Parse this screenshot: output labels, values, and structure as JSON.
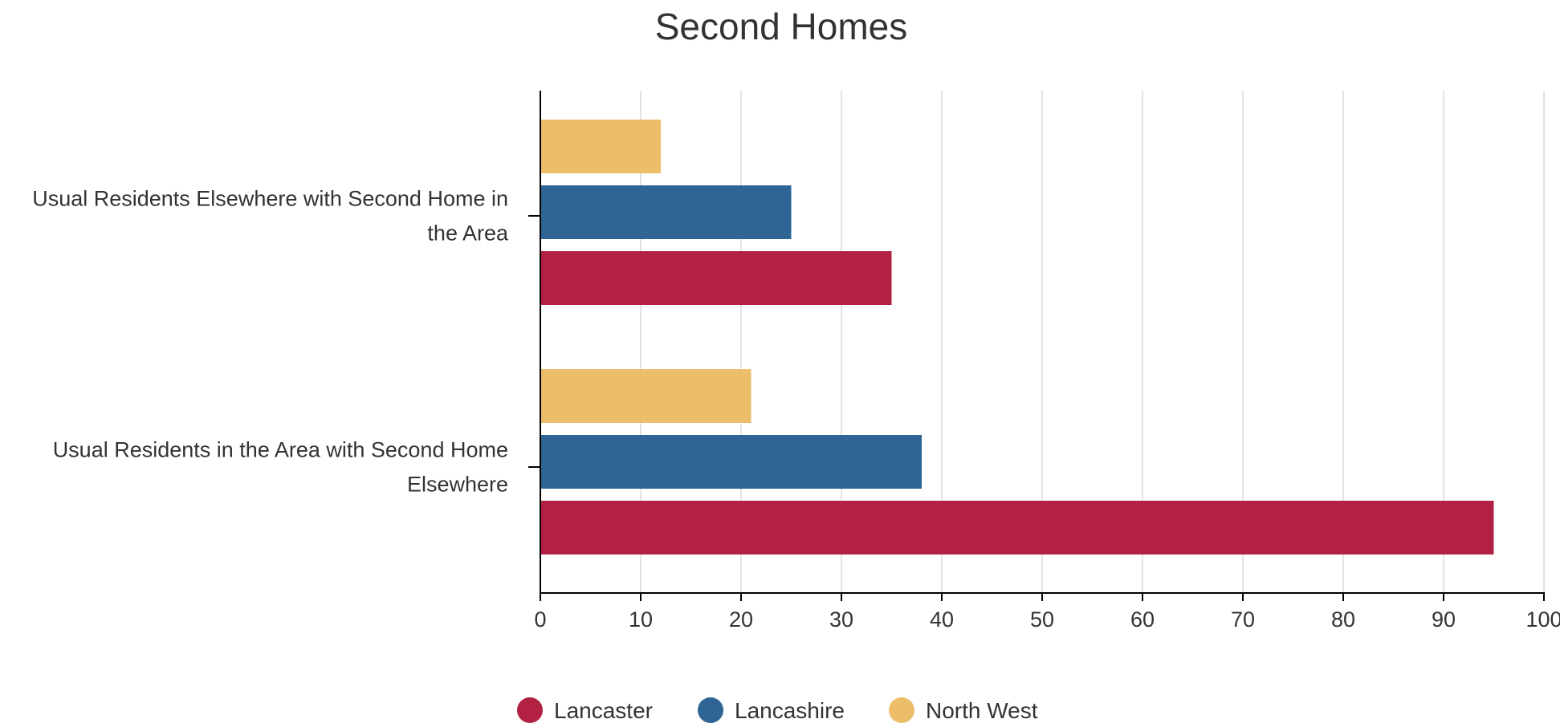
{
  "chart_data": {
    "type": "bar",
    "orientation": "horizontal",
    "title": "Second Homes",
    "xlabel": "",
    "ylabel": "",
    "categories": [
      "Usual Residents Elsewhere with Second Home in the Area",
      "Usual Residents in the Area with Second Home Elsewhere"
    ],
    "series": [
      {
        "name": "North West",
        "color": "#ECBE6A",
        "values": [
          12,
          21
        ]
      },
      {
        "name": "Lancashire",
        "color": "#2E6595",
        "values": [
          25,
          38
        ]
      },
      {
        "name": "Lancaster",
        "color": "#B32142",
        "values": [
          35,
          95
        ]
      }
    ],
    "xlim": [
      0,
      100
    ],
    "xticks": [
      0,
      10,
      20,
      30,
      40,
      50,
      60,
      70,
      80,
      90,
      100
    ],
    "grid": true,
    "legend": {
      "position": "bottom",
      "order": [
        "Lancaster",
        "Lancashire",
        "North West"
      ]
    }
  }
}
